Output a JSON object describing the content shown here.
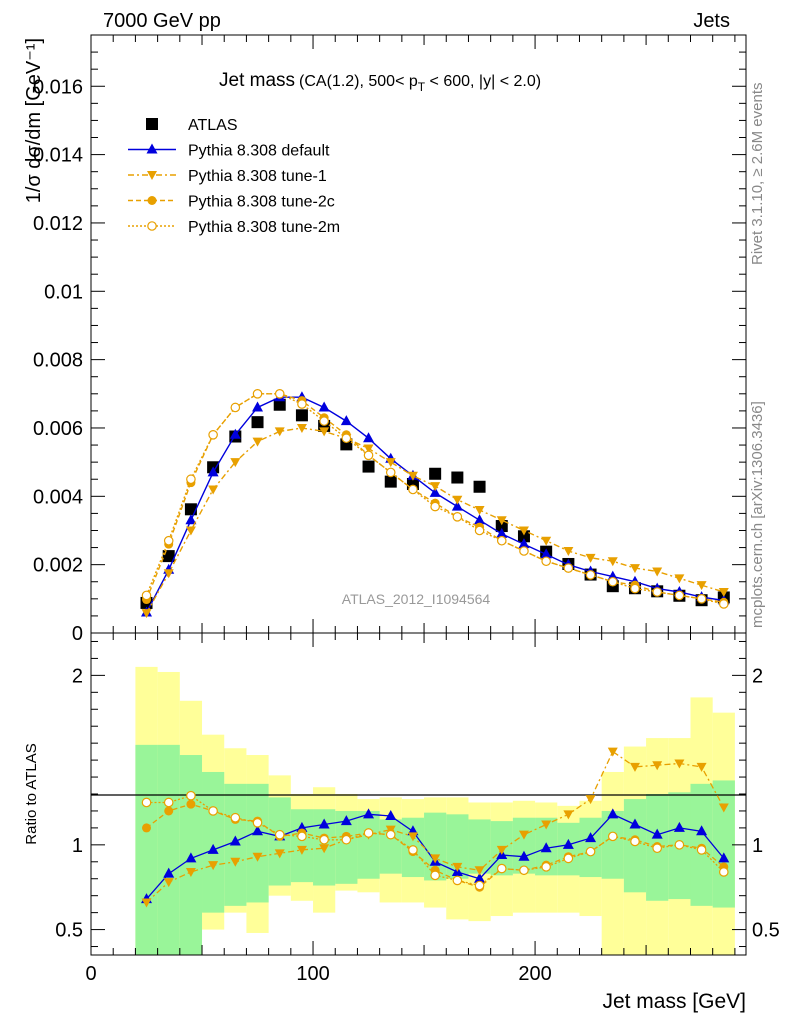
{
  "header": {
    "left": "7000 GeV pp",
    "right": "Jets"
  },
  "title": {
    "main": "Jet mass",
    "sub": "(CA(1.2), 500< p",
    "sub_T": "T",
    "sub_rest": " < 600, |y| < 2.0)"
  },
  "side": {
    "rivet": "Rivet 3.1.10, ≥ 2.6M events",
    "mcplots": "mcplots.cern.ch [arXiv:1306.3436]"
  },
  "watermark": "ATLAS_2012_I1094564",
  "axes": {
    "top_ylabel": "1/σ dσ/dm [GeV⁻¹]",
    "ratio_ylabel": "Ratio to ATLAS",
    "xlabel": "Jet mass [GeV]"
  },
  "colors": {
    "default": "#0000dd",
    "tune": "#e8a000",
    "data": "#000000",
    "band_inner": "#99f599",
    "band_outer": "#ffff99"
  },
  "chart_data": {
    "type": "line",
    "x_range": [
      0,
      295
    ],
    "top": {
      "ylim": [
        0,
        0.0175
      ],
      "yticks": [
        0,
        0.002,
        0.004,
        0.006,
        0.008,
        0.01,
        0.012,
        0.014,
        0.016
      ],
      "ytick_labels": [
        "0",
        "0.002",
        "0.004",
        "0.006",
        "0.008",
        "0.01",
        "0.012",
        "0.014",
        "0.016"
      ]
    },
    "ratio": {
      "ylim": [
        0.35,
        2.25
      ],
      "yticks": [
        0.5,
        1,
        2
      ],
      "ytick_labels": [
        "0.5",
        "1",
        "2"
      ]
    },
    "xticks": [
      0,
      100,
      200
    ],
    "xtick_labels": [
      "0",
      "100",
      "200"
    ],
    "x": [
      25,
      35,
      45,
      55,
      65,
      75,
      85,
      95,
      105,
      115,
      125,
      135,
      145,
      155,
      165,
      175,
      185,
      195,
      205,
      215,
      225,
      235,
      245,
      255,
      265,
      275,
      285
    ],
    "bin_edges": [
      20,
      30,
      40,
      50,
      60,
      70,
      80,
      90,
      100,
      110,
      120,
      130,
      140,
      150,
      160,
      170,
      180,
      190,
      200,
      210,
      220,
      230,
      240,
      250,
      260,
      270,
      280,
      290
    ],
    "series": [
      {
        "name": "ATLAS",
        "style": "data",
        "values": [
          0.00088,
          0.00225,
          0.00362,
          0.00485,
          0.00575,
          0.00617,
          0.00668,
          0.00637,
          0.00606,
          0.00552,
          0.00487,
          0.00443,
          0.00436,
          0.00466,
          0.00455,
          0.00428,
          0.00313,
          0.00283,
          0.00238,
          0.00202,
          0.00171,
          0.00137,
          0.00131,
          0.00122,
          0.00109,
          0.00096,
          0.00104
        ]
      },
      {
        "name": "Pythia 8.308 default",
        "style": "default",
        "values": [
          0.0006,
          0.00185,
          0.0033,
          0.0047,
          0.0058,
          0.0066,
          0.0069,
          0.0069,
          0.0066,
          0.0062,
          0.0057,
          0.0051,
          0.0046,
          0.0041,
          0.0037,
          0.0033,
          0.0029,
          0.0026,
          0.0023,
          0.002,
          0.0018,
          0.00165,
          0.0015,
          0.0013,
          0.0012,
          0.00105,
          0.00095
        ]
      },
      {
        "name": "Pythia 8.308 tune-1",
        "style": "tune1",
        "values": [
          0.00058,
          0.00175,
          0.003,
          0.0042,
          0.005,
          0.0056,
          0.0059,
          0.006,
          0.0059,
          0.0057,
          0.0054,
          0.005,
          0.0046,
          0.0043,
          0.0039,
          0.0036,
          0.0033,
          0.003,
          0.0027,
          0.0024,
          0.0022,
          0.0021,
          0.0019,
          0.0018,
          0.0016,
          0.0014,
          0.0012
        ]
      },
      {
        "name": "Pythia 8.308 tune-2c",
        "style": "tune2c",
        "values": [
          0.00098,
          0.0026,
          0.0044,
          0.0058,
          0.0066,
          0.007,
          0.007,
          0.0068,
          0.0063,
          0.0058,
          0.0052,
          0.0047,
          0.0042,
          0.0038,
          0.0034,
          0.0031,
          0.0027,
          0.0024,
          0.0021,
          0.0019,
          0.0017,
          0.0015,
          0.0014,
          0.0012,
          0.0011,
          0.001,
          0.0009
        ]
      },
      {
        "name": "Pythia 8.308 tune-2m",
        "style": "tune2m",
        "values": [
          0.0011,
          0.0027,
          0.0045,
          0.0058,
          0.0066,
          0.007,
          0.007,
          0.0067,
          0.0062,
          0.0057,
          0.0052,
          0.0047,
          0.0042,
          0.0037,
          0.0034,
          0.003,
          0.0027,
          0.0024,
          0.0021,
          0.0019,
          0.0017,
          0.0015,
          0.0013,
          0.0012,
          0.0011,
          0.001,
          0.00085
        ]
      }
    ],
    "ratio_series": [
      {
        "name": "Pythia 8.308 default",
        "style": "default",
        "values": [
          0.68,
          0.83,
          0.92,
          0.97,
          1.02,
          1.08,
          1.05,
          1.1,
          1.12,
          1.14,
          1.18,
          1.17,
          1.08,
          0.9,
          0.84,
          0.8,
          0.94,
          0.93,
          0.98,
          1.0,
          1.04,
          1.18,
          1.12,
          1.06,
          1.1,
          1.08,
          0.92
        ]
      },
      {
        "name": "Pythia 8.308 tune-1",
        "style": "tune1",
        "values": [
          0.66,
          0.78,
          0.84,
          0.88,
          0.9,
          0.93,
          0.95,
          0.97,
          0.98,
          1.03,
          1.06,
          1.09,
          1.05,
          0.92,
          0.87,
          0.85,
          0.97,
          1.06,
          1.12,
          1.18,
          1.27,
          1.55,
          1.46,
          1.47,
          1.48,
          1.46,
          1.22
        ]
      },
      {
        "name": "Pythia 8.308 tune-2c",
        "style": "tune2c",
        "values": [
          1.1,
          1.2,
          1.24,
          1.2,
          1.15,
          1.14,
          1.05,
          1.07,
          1.04,
          1.05,
          1.07,
          1.06,
          0.96,
          0.85,
          0.79,
          0.75,
          0.86,
          0.85,
          0.88,
          0.93,
          0.96,
          1.05,
          1.03,
          0.99,
          1.0,
          0.98,
          0.87
        ]
      },
      {
        "name": "Pythia 8.308 tune-2m",
        "style": "tune2m",
        "values": [
          1.25,
          1.25,
          1.29,
          1.2,
          1.16,
          1.13,
          1.06,
          1.05,
          1.03,
          1.03,
          1.07,
          1.06,
          0.97,
          0.82,
          0.79,
          0.76,
          0.86,
          0.85,
          0.87,
          0.92,
          0.96,
          1.05,
          1.02,
          0.98,
          1.0,
          0.97,
          0.84
        ]
      }
    ],
    "band_inner": {
      "lo": [
        0.35,
        0.35,
        0.35,
        0.6,
        0.64,
        0.66,
        0.76,
        0.78,
        0.76,
        0.77,
        0.8,
        0.83,
        0.81,
        0.79,
        0.8,
        0.83,
        0.82,
        0.83,
        0.82,
        0.82,
        0.81,
        0.8,
        0.72,
        0.67,
        0.68,
        0.64,
        0.63
      ],
      "hi": [
        1.59,
        1.59,
        1.53,
        1.43,
        1.36,
        1.36,
        1.28,
        1.21,
        1.21,
        1.2,
        1.2,
        1.15,
        1.16,
        1.19,
        1.18,
        1.15,
        1.14,
        1.16,
        1.16,
        1.13,
        1.16,
        1.2,
        1.27,
        1.3,
        1.31,
        1.36,
        1.38
      ]
    },
    "band_outer": {
      "lo": [
        0.35,
        0.35,
        0.35,
        0.5,
        0.6,
        0.48,
        0.7,
        0.67,
        0.6,
        0.73,
        0.72,
        0.66,
        0.66,
        0.63,
        0.56,
        0.55,
        0.58,
        0.6,
        0.6,
        0.6,
        0.58,
        0.35,
        0.35,
        0.35,
        0.35,
        0.35,
        0.35
      ],
      "hi": [
        2.05,
        2.02,
        1.85,
        1.65,
        1.57,
        1.53,
        1.41,
        1.3,
        1.34,
        1.3,
        1.27,
        1.28,
        1.27,
        1.28,
        1.28,
        1.25,
        1.25,
        1.26,
        1.25,
        1.23,
        1.26,
        1.43,
        1.58,
        1.63,
        1.63,
        1.87,
        1.78
      ]
    },
    "legend": [
      "ATLAS",
      "Pythia 8.308 default",
      "Pythia 8.308 tune-1",
      "Pythia 8.308 tune-2c",
      "Pythia 8.308 tune-2m"
    ],
    "legend_placement": "top-left",
    "grid": false
  }
}
